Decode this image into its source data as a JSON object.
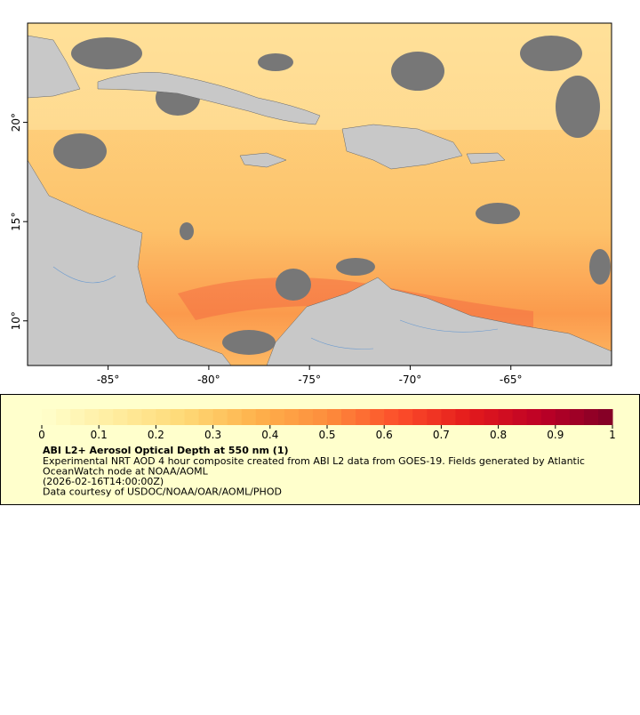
{
  "map": {
    "xlim": [
      -89,
      -60
    ],
    "ylim": [
      7.75,
      25
    ],
    "xticks": [
      {
        "value": -85,
        "label": "-85°"
      },
      {
        "value": -80,
        "label": "-80°"
      },
      {
        "value": -75,
        "label": "-75°"
      },
      {
        "value": -70,
        "label": "-70°"
      },
      {
        "value": -65,
        "label": "-65°"
      }
    ],
    "yticks": [
      {
        "value": 10,
        "label": "10°"
      },
      {
        "value": 15,
        "label": "15°"
      },
      {
        "value": 20,
        "label": "20°"
      }
    ]
  },
  "legend": {
    "range": [
      0,
      1
    ],
    "ticks": [
      0,
      0.1,
      0.2,
      0.3,
      0.4,
      0.5,
      0.6,
      0.7,
      0.8,
      0.9,
      1
    ],
    "colormap": [
      "#ffffcc",
      "#ffeda0",
      "#fed976",
      "#feb24c",
      "#fd8d3c",
      "#fc4e2a",
      "#e31a1c",
      "#bd0026",
      "#800026"
    ],
    "title": "ABI L2+ Aerosol Optical Depth at 550 nm (1)",
    "lines": [
      "Experimental NRT AOD 4 hour composite created from ABI L2 data from GOES-19. Fields generated by Atlantic",
      "OceanWatch node at NOAA/AOML",
      "(2026-02-16T14:00:00Z)",
      "Data courtesy of USDOC/NOAA/OAR/AOML/PHOD"
    ]
  }
}
